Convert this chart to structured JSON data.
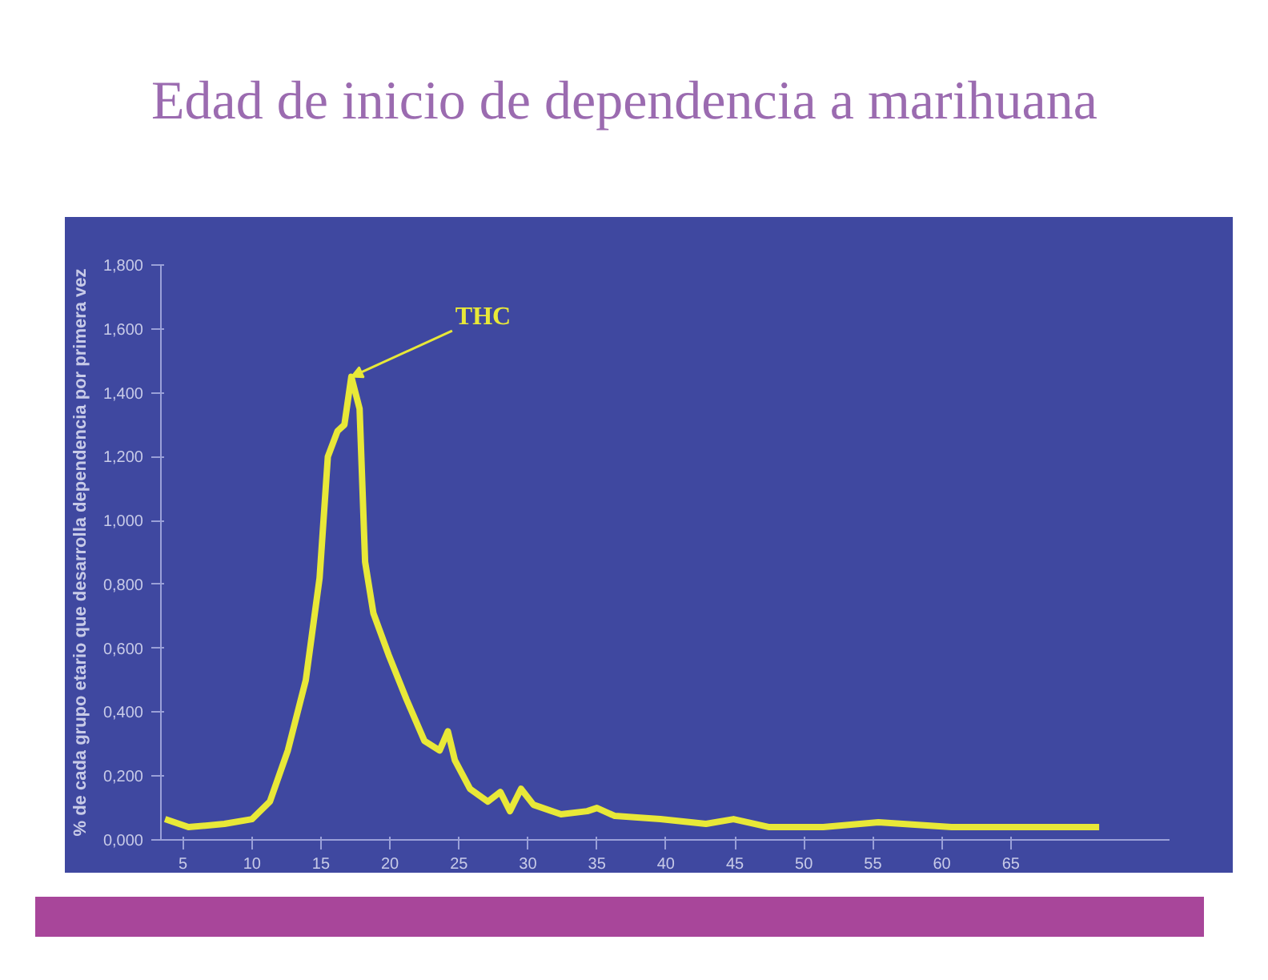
{
  "chart_data": {
    "type": "line",
    "title": "Edad de inicio de dependencia a marihuana",
    "ylabel": "% de cada grupo etario que desarrolla dependencia por primera vez",
    "x": [
      3.7,
      5.4,
      8.0,
      10.0,
      11.3,
      12.6,
      13.9,
      14.9,
      15.5,
      16.2,
      16.7,
      17.2,
      17.8,
      18.2,
      18.8,
      19.9,
      21.2,
      22.5,
      23.6,
      24.2,
      24.7,
      25.8,
      27.1,
      28.0,
      28.7,
      29.5,
      30.4,
      32.4,
      34.3,
      35.0,
      36.3,
      39.6,
      42.9,
      44.9,
      47.5,
      51.4,
      55.4,
      60.7,
      65.9,
      71.4
    ],
    "series": [
      {
        "color": "#e8e838",
        "values": [
          0.065,
          0.04,
          0.05,
          0.065,
          0.12,
          0.28,
          0.5,
          0.82,
          1.2,
          1.28,
          1.3,
          1.45,
          1.35,
          0.87,
          0.71,
          0.58,
          0.44,
          0.31,
          0.28,
          0.34,
          0.25,
          0.16,
          0.12,
          0.15,
          0.09,
          0.16,
          0.11,
          0.08,
          0.09,
          0.1,
          0.075,
          0.065,
          0.05,
          0.065,
          0.04,
          0.04,
          0.055,
          0.04,
          0.04,
          0.04
        ]
      }
    ],
    "annotations": [
      {
        "text": "THC",
        "x": 17.2,
        "y": 1.45
      }
    ],
    "xlim": [
      3.4,
      76.5
    ],
    "xticks": [
      5,
      10,
      15,
      20,
      25,
      30,
      35,
      40,
      45,
      50,
      55,
      60,
      65
    ],
    "ylim": [
      0,
      1.8
    ],
    "yticks": [
      {
        "value": 0,
        "label": "0,000"
      },
      {
        "value": 0.2,
        "label": "0,200"
      },
      {
        "value": 0.4,
        "label": "0,400"
      },
      {
        "value": 0.6,
        "label": "0,600"
      },
      {
        "value": 0.8,
        "label": "0,800"
      },
      {
        "value": 1.0,
        "label": "1,000"
      },
      {
        "value": 1.2,
        "label": "1,200"
      },
      {
        "value": 1.4,
        "label": "1,400"
      },
      {
        "value": 1.6,
        "label": "1,600"
      },
      {
        "value": 1.8,
        "label": "1,800"
      }
    ],
    "grid": false,
    "marker": "none",
    "line_style": "solid"
  }
}
